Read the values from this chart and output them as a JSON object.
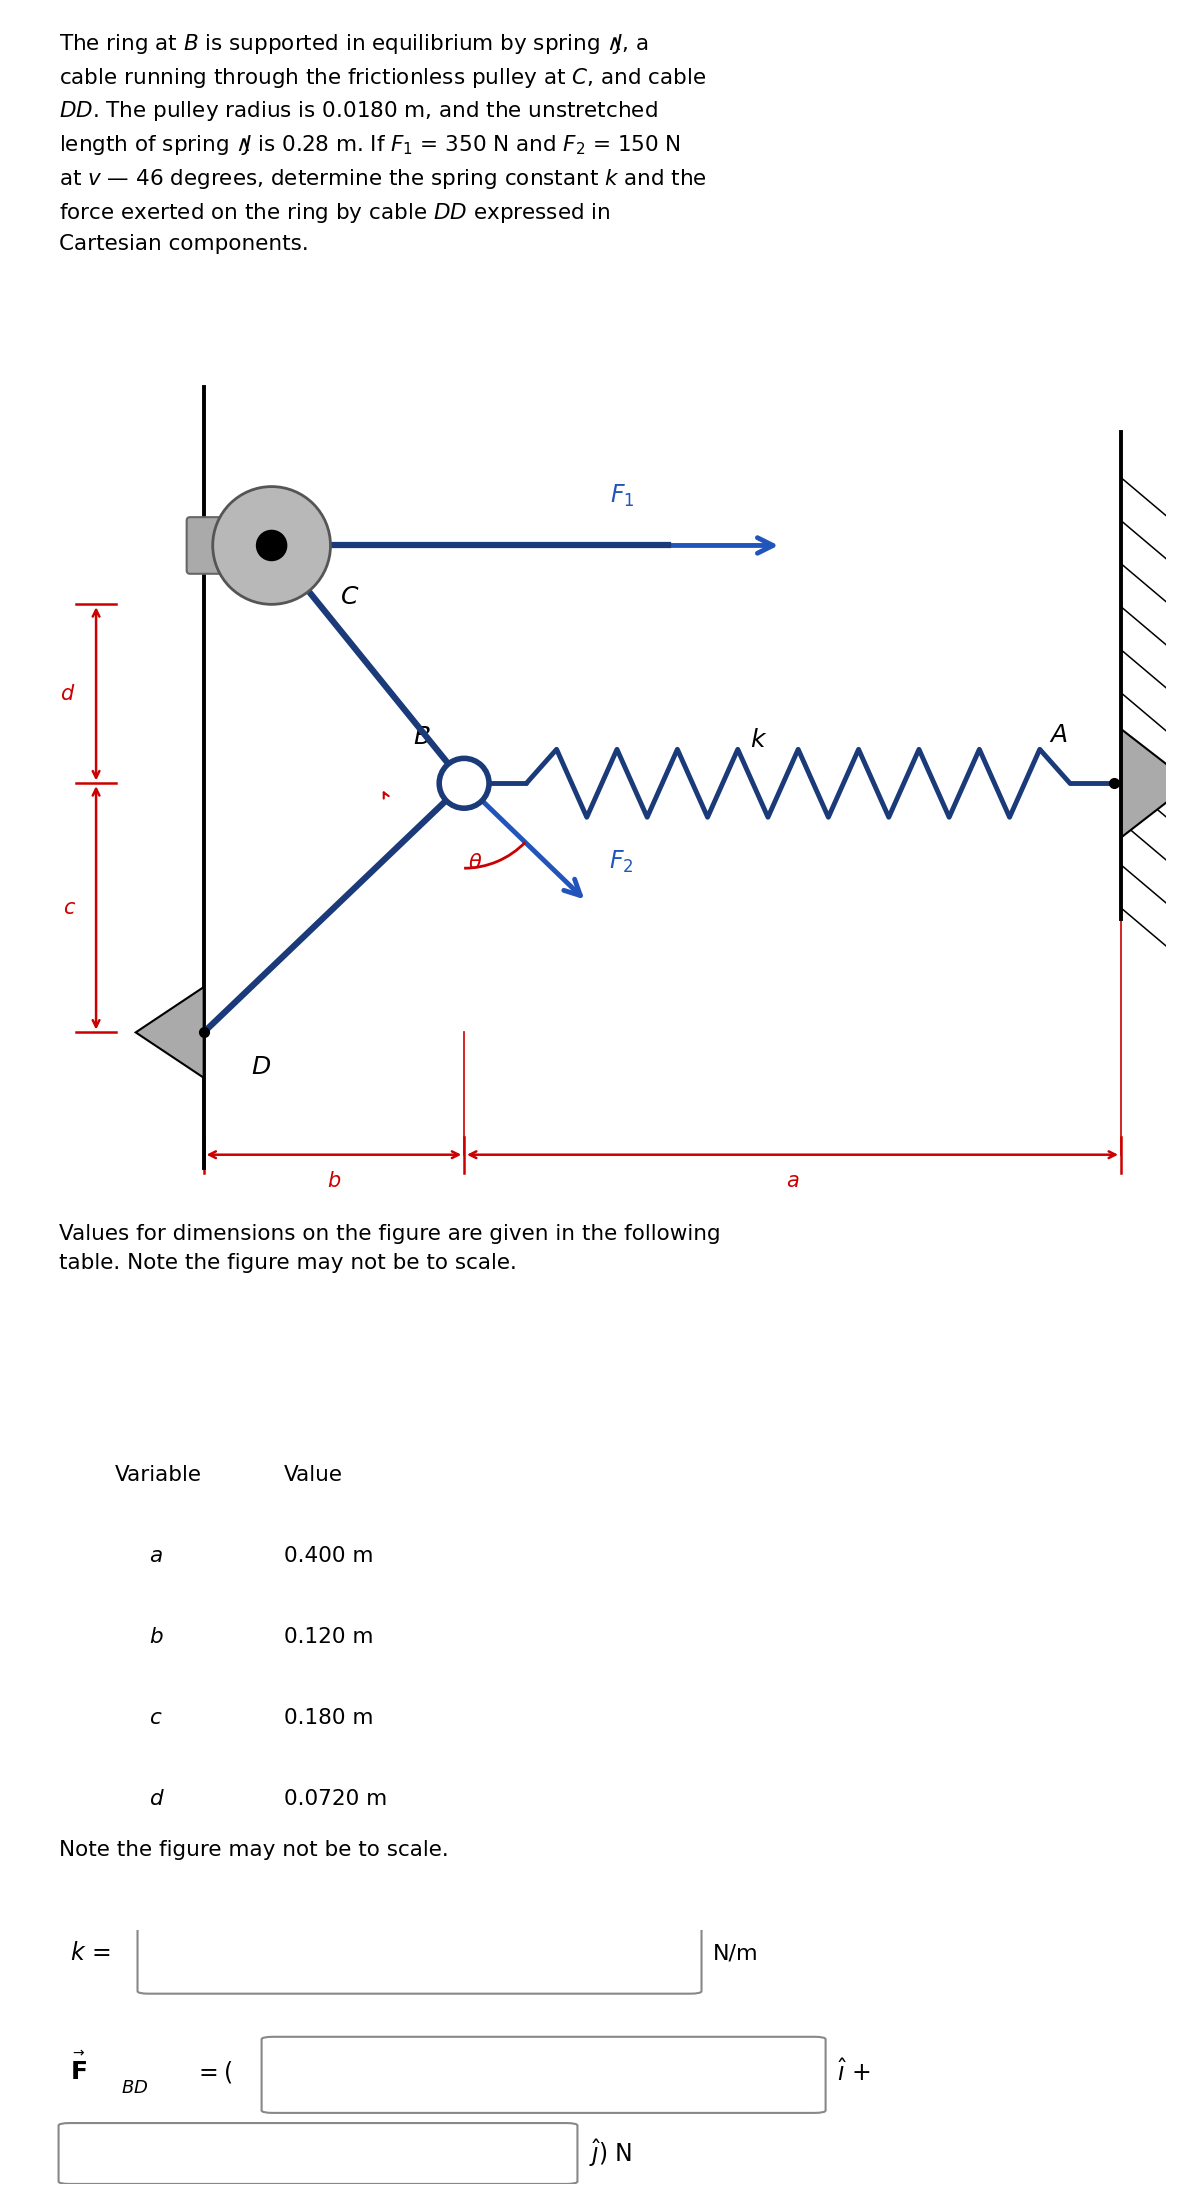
{
  "bg_color": "#ffffff",
  "cable_color": "#1a3a7a",
  "spring_color": "#1a3a7a",
  "arrow_color": "#2255bb",
  "dim_color": "#cc0000",
  "text_color": "#000000",
  "wall_hatch_color": "#333333",
  "pulley_face": "#b0b0b0",
  "pulley_edge": "#555555",
  "mount_face": "#aaaaaa",
  "mount_edge": "#666666",
  "variables": [
    "a",
    "b",
    "c",
    "d"
  ],
  "values": [
    "0.400 m",
    "0.120 m",
    "0.180 m",
    "0.0720 m"
  ],
  "note": "Note the figure may not be to scale.",
  "problem_lines": [
    "The ring at $B$ is supported in equilibrium by spring $\\wedge\\!\\!J$, a",
    "cable running through the frictionless pulley at $C$, and cable",
    "$\\mathit{DD}$. The pulley radius is 0.0180 m, and the unstretched",
    "length of spring $\\wedge\\!\\!J$ is 0.28 m. If $F_1$ = 350 N and $F_2$ = 150 N",
    "at $v$ — 46 degrees, determine the spring constant $k$ and the",
    "force exerted on the ring by cable $\\mathit{DD}$ expressed in",
    "Cartesian components."
  ]
}
